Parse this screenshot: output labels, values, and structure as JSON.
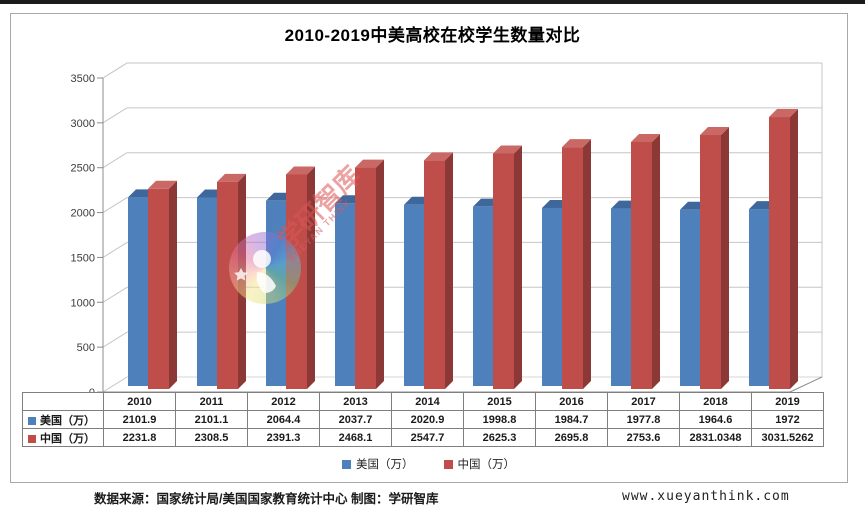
{
  "window": {
    "top_bar_color": "#1c1c1c"
  },
  "chart_data": {
    "type": "bar",
    "variant": "3d-clustered-column",
    "title": "2010-2019中美高校在校学生数量对比",
    "categories": [
      "2010",
      "2011",
      "2012",
      "2013",
      "2014",
      "2015",
      "2016",
      "2017",
      "2018",
      "2019"
    ],
    "series": [
      {
        "key": "us",
        "name": "美国（万）",
        "color": "#4E80BC",
        "color_top": "#3E689C",
        "color_side": "#35597F",
        "values": [
          2101.9,
          2101.1,
          2064.4,
          2037.7,
          2020.9,
          1998.8,
          1984.7,
          1977.8,
          1964.6,
          1972
        ]
      },
      {
        "key": "cn",
        "name": "中国（万）",
        "color": "#BF4E4B",
        "color_top": "#C96865",
        "color_side": "#8C3836",
        "values": [
          2231.8,
          2308.5,
          2391.3,
          2468.1,
          2547.7,
          2625.3,
          2695.8,
          2753.6,
          2831.0348,
          3031.5262
        ]
      }
    ],
    "ylim": [
      0,
      3500
    ],
    "ytick_step": 500,
    "yticks": [
      "0",
      "500",
      "1000",
      "1500",
      "2000",
      "2500",
      "3000",
      "3500"
    ],
    "grid": true,
    "legend_position": "bottom",
    "show_data_table": true
  },
  "watermark": {
    "brand_cn": "学研智库",
    "brand_en": "XUEYAN THINK"
  },
  "footer": {
    "source": "数据来源：国家统计局/美国国家教育统计中心  制图：学研智库",
    "website": "www.xueyanthink.com"
  }
}
